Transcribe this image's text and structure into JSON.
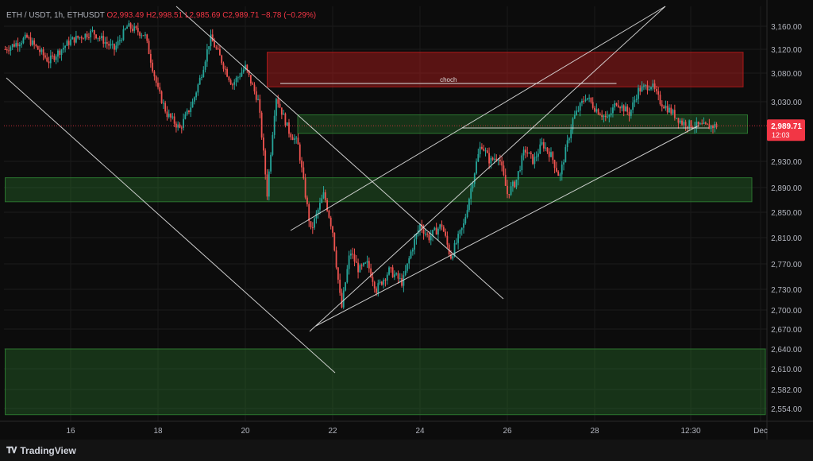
{
  "header": {
    "symbol": "ETH / USDT, 1h, ETHUSDT",
    "open": "O2,993.49",
    "high": "H2,998.51",
    "low": "L2,985.69",
    "close": "C2,989.71",
    "change": "−8.78 (−0.29%)"
  },
  "footer": {
    "brand": "TradingView",
    "logo_icon": "tradingview-logo-icon"
  },
  "colors": {
    "bull": "#26a69a",
    "bear": "#ef5350",
    "demand_zone": "#2e7d32",
    "supply_zone": "#b71c1c",
    "price_tag": "#f23645",
    "lines": "#e0e0e0"
  },
  "chart_data": {
    "type": "candlestick",
    "title": "",
    "xlabel": "",
    "ylabel": "",
    "x_ticks": [
      "16",
      "18",
      "20",
      "22",
      "24",
      "26",
      "28",
      "12:30",
      "Dec"
    ],
    "y_ticks": [
      "3,160.00",
      "3,120.00",
      "3,080.00",
      "3,030.00",
      "2,930.00",
      "2,890.00",
      "2,850.00",
      "2,810.00",
      "2,770.00",
      "2,730.00",
      "2,700.00",
      "2,670.00",
      "2,640.00",
      "2,610.00",
      "2,582.00",
      "2,554.00"
    ],
    "ylim": [
      2535,
      3180
    ],
    "xlim": [
      14.5,
      31.5
    ],
    "last_price": "2,989.71",
    "countdown": "12:03",
    "price_path": [
      [
        14.5,
        3120
      ],
      [
        15.0,
        3140
      ],
      [
        15.5,
        3100
      ],
      [
        16.0,
        3135
      ],
      [
        16.5,
        3150
      ],
      [
        17.0,
        3120
      ],
      [
        17.3,
        3160
      ],
      [
        17.7,
        3145
      ],
      [
        18.0,
        3050
      ],
      [
        18.2,
        3010
      ],
      [
        18.5,
        2985
      ],
      [
        18.8,
        3030
      ],
      [
        19.0,
        3080
      ],
      [
        19.2,
        3140
      ],
      [
        19.4,
        3110
      ],
      [
        19.7,
        3060
      ],
      [
        20.0,
        3090
      ],
      [
        20.3,
        3030
      ],
      [
        20.5,
        2880
      ],
      [
        20.7,
        3040
      ],
      [
        21.0,
        2980
      ],
      [
        21.2,
        2960
      ],
      [
        21.5,
        2820
      ],
      [
        21.8,
        2880
      ],
      [
        22.0,
        2820
      ],
      [
        22.2,
        2700
      ],
      [
        22.4,
        2790
      ],
      [
        22.6,
        2760
      ],
      [
        22.8,
        2770
      ],
      [
        23.0,
        2730
      ],
      [
        23.3,
        2760
      ],
      [
        23.6,
        2740
      ],
      [
        23.8,
        2790
      ],
      [
        24.0,
        2830
      ],
      [
        24.2,
        2810
      ],
      [
        24.5,
        2830
      ],
      [
        24.7,
        2780
      ],
      [
        25.0,
        2830
      ],
      [
        25.2,
        2900
      ],
      [
        25.4,
        2960
      ],
      [
        25.6,
        2930
      ],
      [
        25.8,
        2940
      ],
      [
        26.0,
        2880
      ],
      [
        26.2,
        2900
      ],
      [
        26.4,
        2950
      ],
      [
        26.6,
        2930
      ],
      [
        26.8,
        2960
      ],
      [
        27.0,
        2940
      ],
      [
        27.2,
        2905
      ],
      [
        27.5,
        3000
      ],
      [
        27.8,
        3040
      ],
      [
        28.0,
        3020
      ],
      [
        28.3,
        3000
      ],
      [
        28.5,
        3030
      ],
      [
        28.8,
        3010
      ],
      [
        29.0,
        3050
      ],
      [
        29.3,
        3060
      ],
      [
        29.5,
        3030
      ],
      [
        29.8,
        3010
      ],
      [
        30.0,
        2995
      ],
      [
        30.3,
        2990
      ],
      [
        30.6,
        2988
      ],
      [
        30.8,
        2990
      ]
    ],
    "zones": [
      {
        "kind": "supply",
        "y": [
          3056,
          3115
        ],
        "x": [
          20.5,
          31.4
        ]
      },
      {
        "kind": "demand",
        "y": [
          2977,
          3008
        ],
        "x": [
          21.2,
          31.5
        ]
      },
      {
        "kind": "demand",
        "y": [
          2867,
          2905
        ],
        "x": [
          14.5,
          31.6
        ]
      },
      {
        "kind": "demand",
        "y": [
          2545,
          2640
        ],
        "x": [
          14.5,
          32.0
        ]
      }
    ],
    "annotations": {
      "choch_label": "choch",
      "choch_level": 3062
    }
  }
}
